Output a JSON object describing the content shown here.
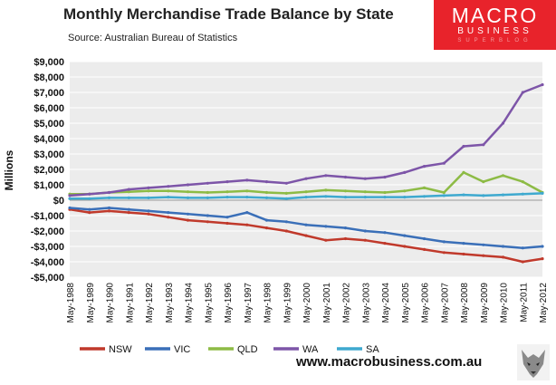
{
  "header": {
    "title": "Monthly Merchandise Trade Balance by State",
    "source": "Source:  Australian Bureau of Statistics"
  },
  "logo": {
    "main": "MACRO",
    "sub1": "BUSINESS",
    "sub2": "SUPERBLOG"
  },
  "footer": {
    "url": "www.macrobusiness.com.au"
  },
  "chart_data": {
    "type": "line",
    "title": "Monthly Merchandise Trade Balance by State",
    "ylabel": "Millions",
    "xlabel": "",
    "ylim": [
      -5000,
      9000
    ],
    "yticks": [
      9000,
      8000,
      7000,
      6000,
      5000,
      4000,
      3000,
      2000,
      1000,
      0,
      -1000,
      -2000,
      -3000,
      -4000,
      -5000
    ],
    "ytick_labels": [
      "$9,000",
      "$8,000",
      "$7,000",
      "$6,000",
      "$5,000",
      "$4,000",
      "$3,000",
      "$2,000",
      "$1,000",
      "$0",
      "-$1,000",
      "-$2,000",
      "-$3,000",
      "-$4,000",
      "-$5,000"
    ],
    "x_categories": [
      "May-1988",
      "May-1989",
      "May-1990",
      "May-1991",
      "May-1992",
      "May-1993",
      "May-1994",
      "May-1995",
      "May-1996",
      "May-1997",
      "May-1998",
      "May-1999",
      "May-2000",
      "May-2001",
      "May-2002",
      "May-2003",
      "May-2004",
      "May-2005",
      "May-2006",
      "May-2007",
      "May-2008",
      "May-2009",
      "May-2010",
      "May-2011",
      "May-2012"
    ],
    "grid": {
      "horizontal": true,
      "vertical": false
    },
    "legend_position": "bottom",
    "series": [
      {
        "name": "NSW",
        "color": "#c0392b",
        "x": [
          1988.33,
          1989.33,
          1990.33,
          1991.33,
          1992.33,
          1993.33,
          1994.33,
          1995.33,
          1996.33,
          1997.33,
          1998.33,
          1999.33,
          2000.33,
          2001.33,
          2002.33,
          2003.33,
          2004.33,
          2005.33,
          2006.33,
          2007.33,
          2008.33,
          2009.33,
          2010.33,
          2011.33,
          2012.33
        ],
        "values": [
          -600,
          -800,
          -700,
          -800,
          -900,
          -1100,
          -1300,
          -1400,
          -1500,
          -1600,
          -1800,
          -2000,
          -2300,
          -2600,
          -2500,
          -2600,
          -2800,
          -3000,
          -3200,
          -3400,
          -3500,
          -3600,
          -3700,
          -4000,
          -3800
        ]
      },
      {
        "name": "VIC",
        "color": "#3a6fb8",
        "x": [
          1988.33,
          1989.33,
          1990.33,
          1991.33,
          1992.33,
          1993.33,
          1994.33,
          1995.33,
          1996.33,
          1997.33,
          1998.33,
          1999.33,
          2000.33,
          2001.33,
          2002.33,
          2003.33,
          2004.33,
          2005.33,
          2006.33,
          2007.33,
          2008.33,
          2009.33,
          2010.33,
          2011.33,
          2012.33
        ],
        "values": [
          -500,
          -600,
          -500,
          -600,
          -700,
          -800,
          -900,
          -1000,
          -1100,
          -800,
          -1300,
          -1400,
          -1600,
          -1700,
          -1800,
          -2000,
          -2100,
          -2300,
          -2500,
          -2700,
          -2800,
          -2900,
          -3000,
          -3100,
          -3000
        ]
      },
      {
        "name": "QLD",
        "color": "#8dbb45",
        "x": [
          1988.33,
          1989.33,
          1990.33,
          1991.33,
          1992.33,
          1993.33,
          1994.33,
          1995.33,
          1996.33,
          1997.33,
          1998.33,
          1999.33,
          2000.33,
          2001.33,
          2002.33,
          2003.33,
          2004.33,
          2005.33,
          2006.33,
          2007.33,
          2008.33,
          2009.33,
          2010.33,
          2011.33,
          2012.33
        ],
        "values": [
          400,
          400,
          500,
          550,
          600,
          600,
          550,
          500,
          550,
          600,
          500,
          450,
          550,
          650,
          600,
          550,
          500,
          600,
          800,
          500,
          1800,
          1200,
          1600,
          1200,
          500
        ]
      },
      {
        "name": "WA",
        "color": "#7d55a8",
        "x": [
          1988.33,
          1989.33,
          1990.33,
          1991.33,
          1992.33,
          1993.33,
          1994.33,
          1995.33,
          1996.33,
          1997.33,
          1998.33,
          1999.33,
          2000.33,
          2001.33,
          2002.33,
          2003.33,
          2004.33,
          2005.33,
          2006.33,
          2007.33,
          2008.33,
          2009.33,
          2010.33,
          2011.33,
          2012.33
        ],
        "values": [
          300,
          400,
          500,
          700,
          800,
          900,
          1000,
          1100,
          1200,
          1300,
          1200,
          1100,
          1400,
          1600,
          1500,
          1400,
          1500,
          1800,
          2200,
          2400,
          3500,
          3600,
          5000,
          7000,
          7500
        ]
      },
      {
        "name": "SA",
        "color": "#3ea9cf",
        "x": [
          1988.33,
          1989.33,
          1990.33,
          1991.33,
          1992.33,
          1993.33,
          1994.33,
          1995.33,
          1996.33,
          1997.33,
          1998.33,
          1999.33,
          2000.33,
          2001.33,
          2002.33,
          2003.33,
          2004.33,
          2005.33,
          2006.33,
          2007.33,
          2008.33,
          2009.33,
          2010.33,
          2011.33,
          2012.33
        ],
        "values": [
          100,
          100,
          150,
          150,
          150,
          200,
          150,
          150,
          200,
          200,
          150,
          100,
          200,
          250,
          200,
          200,
          200,
          200,
          250,
          300,
          350,
          300,
          350,
          400,
          450
        ]
      }
    ]
  }
}
